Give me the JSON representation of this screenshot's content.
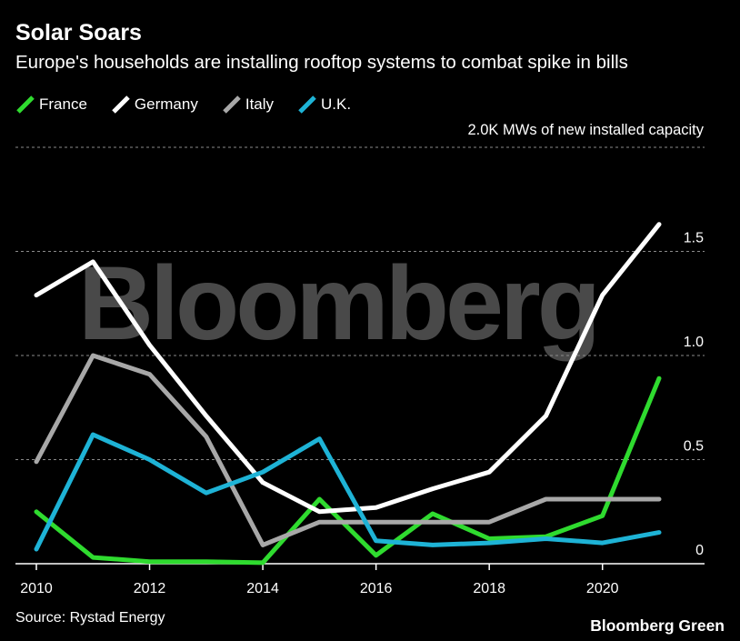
{
  "title": "Solar Soars",
  "subtitle": "Europe's households are installing rooftop systems to combat spike in bills",
  "unit_label": "2.0K MWs of new installed capacity",
  "watermark": "Bloomberg",
  "source": "Source: Rystad Energy",
  "brand": "Bloomberg Green",
  "legend": [
    {
      "name": "France",
      "color": "#2fdb2f"
    },
    {
      "name": "Germany",
      "color": "#ffffff"
    },
    {
      "name": "Italy",
      "color": "#a8a8a8"
    },
    {
      "name": "U.K.",
      "color": "#1eb3d6"
    }
  ],
  "chart_data": {
    "type": "line",
    "x": [
      2010,
      2011,
      2012,
      2013,
      2014,
      2015,
      2016,
      2017,
      2018,
      2019,
      2020,
      2021
    ],
    "series": [
      {
        "name": "France",
        "color": "#2fdb2f",
        "values": [
          0.25,
          0.03,
          0.01,
          0.01,
          0.005,
          0.31,
          0.04,
          0.24,
          0.12,
          0.13,
          0.23,
          0.89
        ]
      },
      {
        "name": "Germany",
        "color": "#ffffff",
        "values": [
          1.29,
          1.45,
          1.05,
          0.71,
          0.39,
          0.25,
          0.27,
          0.36,
          0.44,
          0.71,
          1.29,
          1.63
        ]
      },
      {
        "name": "Italy",
        "color": "#a8a8a8",
        "values": [
          0.49,
          1.0,
          0.91,
          0.61,
          0.09,
          0.2,
          0.2,
          0.2,
          0.2,
          0.31,
          0.31,
          0.31
        ]
      },
      {
        "name": "U.K.",
        "color": "#1eb3d6",
        "values": [
          0.07,
          0.62,
          0.5,
          0.34,
          0.44,
          0.6,
          0.11,
          0.09,
          0.1,
          0.12,
          0.1,
          0.15
        ]
      }
    ],
    "x_ticks": [
      2010,
      2012,
      2014,
      2016,
      2018,
      2020
    ],
    "y_ticks": [
      0,
      0.5,
      1.0,
      1.5,
      2.0
    ],
    "y_tick_labels": [
      "0",
      "0.5",
      "1.0",
      "1.5",
      "2.0K MWs of new installed capacity"
    ],
    "xlim": [
      2010,
      2021
    ],
    "ylim": [
      0,
      2.0
    ],
    "grid": "horizontal dashed",
    "legend_position": "top-left",
    "y_axis_side": "right"
  }
}
